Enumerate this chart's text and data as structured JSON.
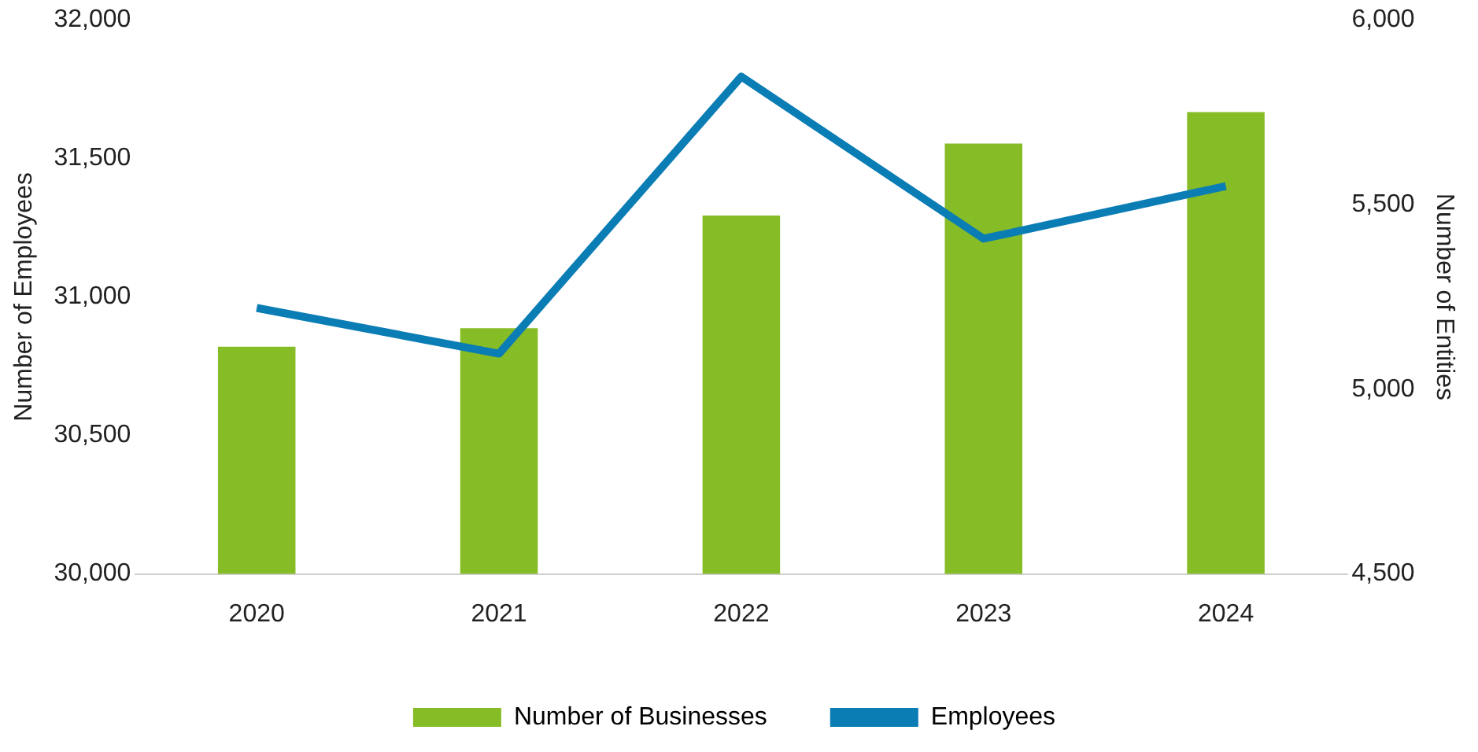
{
  "chart_data": {
    "type": "bar",
    "categories": [
      "2020",
      "2021",
      "2022",
      "2023",
      "2024"
    ],
    "ylabel": "Number of Employees",
    "y2label": "Number of Entities",
    "series": [
      {
        "name": "Number of Businesses",
        "axis": "y2",
        "color": "#86bc25",
        "values": [
          5115,
          5165,
          5470,
          5665,
          5750
        ]
      },
      {
        "name": "Employees",
        "type": "line",
        "axis": "y",
        "color": "#0a7db5",
        "values": [
          30960,
          30795,
          31795,
          31210,
          31400
        ]
      }
    ],
    "ylim": [
      30000,
      32000
    ],
    "yticks": [
      {
        "value": 30000,
        "label": "30,000"
      },
      {
        "value": 30500,
        "label": "30,500"
      },
      {
        "value": 31000,
        "label": "31,000"
      },
      {
        "value": 31500,
        "label": "31,500"
      },
      {
        "value": 32000,
        "label": "32,000"
      }
    ],
    "y2lim": [
      4500,
      6000
    ],
    "y2ticks": [
      {
        "value": 4500,
        "label": "4,500"
      },
      {
        "value": 5000,
        "label": "5,000"
      },
      {
        "value": 5500,
        "label": "5,500"
      },
      {
        "value": 6000,
        "label": "6,000"
      }
    ],
    "grid": false,
    "legend": "bottom",
    "marker": "none"
  }
}
